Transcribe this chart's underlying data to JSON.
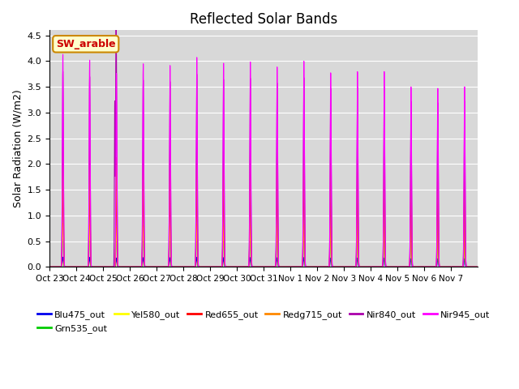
{
  "title": "Reflected Solar Bands",
  "ylabel": "Solar Radiation (W/m2)",
  "ylim": [
    0,
    4.6
  ],
  "yticks": [
    0.0,
    0.5,
    1.0,
    1.5,
    2.0,
    2.5,
    3.0,
    3.5,
    4.0,
    4.5
  ],
  "bg_color": "#d8d8d8",
  "annotation_text": "SW_arable",
  "annotation_bg": "#ffffcc",
  "annotation_border": "#cc8800",
  "annotation_text_color": "#cc0000",
  "series_order": [
    "Blu475_out",
    "Grn535_out",
    "Yel580_out",
    "Red655_out",
    "Redg715_out",
    "Nir840_out",
    "Nir945_out"
  ],
  "series": {
    "Blu475_out": {
      "color": "#0000ee",
      "peak_scale": 0.046
    },
    "Grn535_out": {
      "color": "#00cc00",
      "peak_scale": 0.195
    },
    "Yel580_out": {
      "color": "#ffff00",
      "peak_scale": 0.205
    },
    "Red655_out": {
      "color": "#ff0000",
      "peak_scale": 0.42
    },
    "Redg715_out": {
      "color": "#ff8800",
      "peak_scale": 0.565
    },
    "Nir840_out": {
      "color": "#aa00aa",
      "peak_scale": 0.92
    },
    "Nir945_out": {
      "color": "#ff00ff",
      "peak_scale": 1.0
    }
  },
  "num_days": 16,
  "daily_peaks_nir945": [
    4.13,
    4.02,
    3.76,
    3.95,
    3.92,
    4.08,
    3.97,
    4.0,
    3.9,
    4.01,
    3.78,
    3.8,
    3.8,
    3.5,
    3.47,
    3.5
  ],
  "x_tick_labels": [
    "Oct 23",
    "Oct 24",
    "Oct 25",
    "Oct 26",
    "Oct 27",
    "Oct 28",
    "Oct 29",
    "Oct 30",
    "Oct 31",
    "Nov 1",
    "Nov 2",
    "Nov 3",
    "Nov 4",
    "Nov 5",
    "Nov 6",
    "Nov 7"
  ],
  "points_per_day": 288,
  "sigma_hours": 0.45,
  "peak_hour": 12.0,
  "nir840_day2_spike1": 3.2,
  "nir840_day2_spike2": 2.65,
  "nir840_day2_spike1_hour": 10.5,
  "nir840_day2_spike2_hour": 11.5
}
